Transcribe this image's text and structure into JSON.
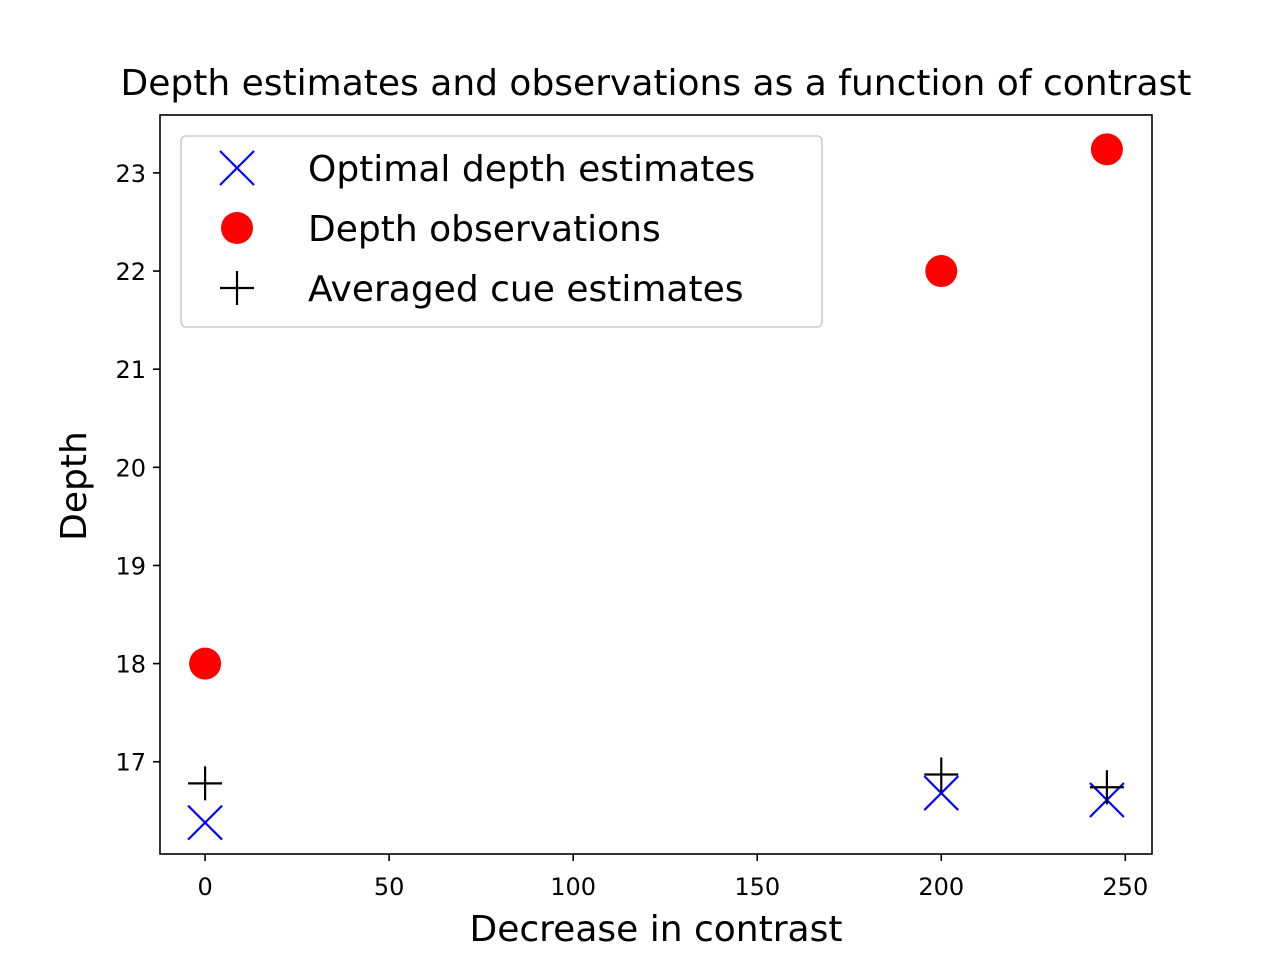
{
  "chart_data": {
    "type": "scatter",
    "title": "Depth estimates and observations as a function of contrast",
    "xlabel": "Decrease in contrast",
    "ylabel": "Depth",
    "xlim": [
      -12.25,
      257.25
    ],
    "ylim": [
      16.06,
      23.59
    ],
    "xticks": [
      0,
      50,
      100,
      150,
      200,
      250
    ],
    "yticks": [
      17,
      18,
      19,
      20,
      21,
      22,
      23
    ],
    "grid": false,
    "legend_position": "upper-left",
    "series": [
      {
        "name": "Optimal depth estimates",
        "marker": "x",
        "color": "#0000ff",
        "points": [
          {
            "x": 0,
            "y": 16.38
          },
          {
            "x": 200,
            "y": 16.68
          },
          {
            "x": 245,
            "y": 16.61
          }
        ]
      },
      {
        "name": "Depth observations",
        "marker": "circle",
        "color": "#ff0000",
        "points": [
          {
            "x": 0,
            "y": 18.0
          },
          {
            "x": 200,
            "y": 22.0
          },
          {
            "x": 245,
            "y": 23.24
          }
        ]
      },
      {
        "name": "Averaged cue estimates",
        "marker": "plus",
        "color": "#000000",
        "points": [
          {
            "x": 0,
            "y": 16.78
          },
          {
            "x": 200,
            "y": 16.87
          },
          {
            "x": 245,
            "y": 16.74
          }
        ]
      }
    ]
  }
}
